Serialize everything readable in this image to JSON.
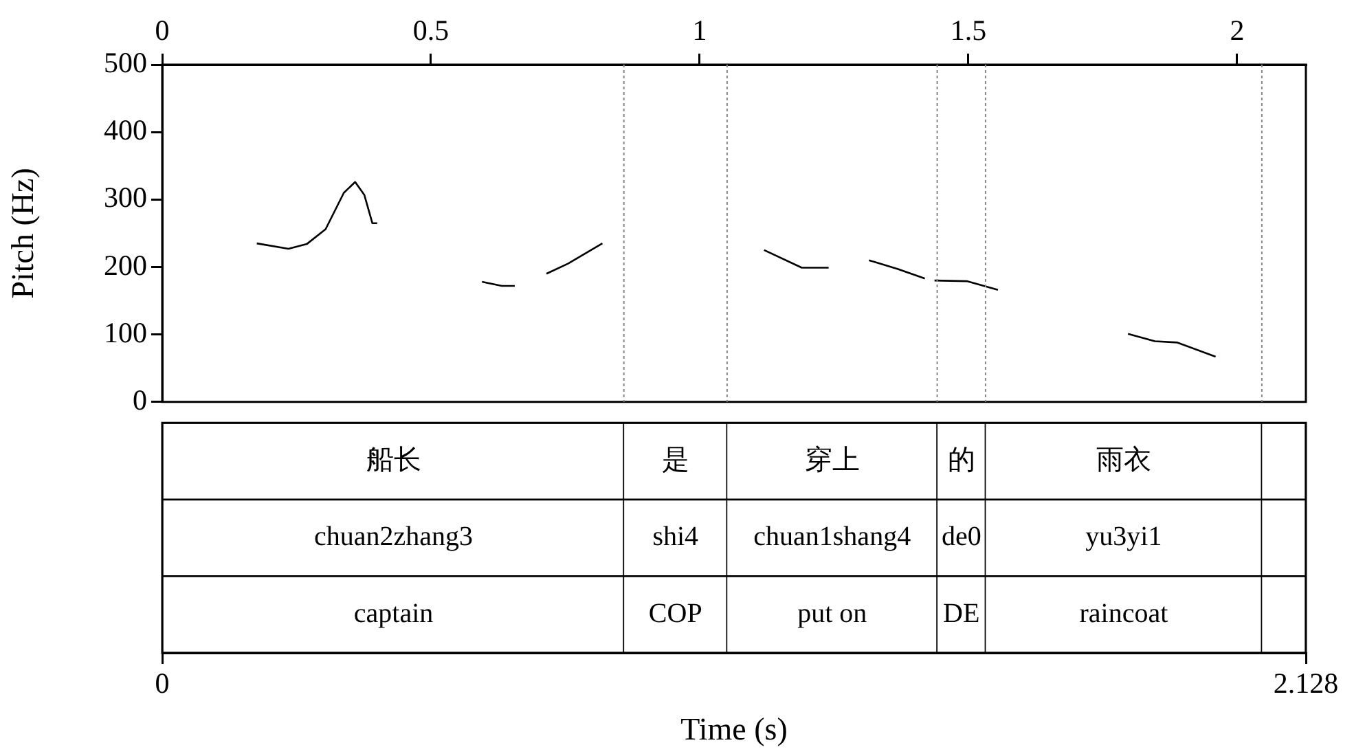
{
  "chart_data": [
    {
      "type": "line",
      "ylabel": "Pitch (Hz)",
      "xlim": [
        0,
        2.128
      ],
      "xticks": [
        0,
        0.5,
        1,
        1.5,
        2
      ],
      "ylim": [
        0,
        500
      ],
      "yticks": [
        0,
        100,
        200,
        300,
        400,
        500
      ],
      "marker": "none",
      "line_style": "solid",
      "legend": false,
      "series": [
        {
          "color": "#000000",
          "x": [
            0.176,
            0.235,
            0.269,
            0.304,
            0.338,
            0.359,
            0.376,
            0.391,
            0.4
          ],
          "values": [
            235,
            227,
            234,
            256,
            310,
            326,
            307,
            265,
            265
          ]
        },
        {
          "color": "#000000",
          "x": [
            0.595,
            0.632,
            0.656
          ],
          "values": [
            178,
            172,
            172
          ]
        },
        {
          "color": "#000000",
          "x": [
            0.715,
            0.755,
            0.819
          ],
          "values": [
            190,
            205,
            235
          ]
        },
        {
          "color": "#000000",
          "x": [
            1.12,
            1.19,
            1.24
          ],
          "values": [
            225,
            199,
            199
          ]
        },
        {
          "color": "#000000",
          "x": [
            1.315,
            1.369,
            1.419
          ],
          "values": [
            210,
            197,
            183
          ]
        },
        {
          "color": "#000000",
          "x": [
            1.437,
            1.497,
            1.555
          ],
          "values": [
            180,
            179,
            166
          ]
        },
        {
          "color": "#000000",
          "x": [
            1.797,
            1.847,
            1.889,
            1.96
          ],
          "values": [
            101,
            90,
            88,
            67
          ]
        }
      ],
      "ref_lines": [
        {
          "axis": "x",
          "value": 0.859,
          "line_style": "dotted",
          "color": "#888888"
        },
        {
          "axis": "x",
          "value": 1.051,
          "line_style": "dotted",
          "color": "#888888"
        },
        {
          "axis": "x",
          "value": 1.442,
          "line_style": "dotted",
          "color": "#888888"
        },
        {
          "axis": "x",
          "value": 1.532,
          "line_style": "dotted",
          "color": "#888888"
        },
        {
          "axis": "x",
          "value": 2.046,
          "line_style": "dotted",
          "color": "#888888"
        }
      ]
    },
    {
      "type": "bar",
      "orientation": "horizontal",
      "stacked": true,
      "xlabel": "Time (s)",
      "xlim": [
        0,
        2.128
      ],
      "xticks": [
        0,
        2.128
      ],
      "categories": [
        null,
        null,
        null
      ],
      "series": [
        {
          "color": "#ffffff",
          "values": [
            0.859,
            0.859,
            0.859
          ],
          "value_labels": [
            "船长",
            "chuan2zhang3",
            "captain"
          ]
        },
        {
          "color": "#ffffff",
          "values": [
            0.192,
            0.192,
            0.192
          ],
          "value_labels": [
            "是",
            "shi4",
            "COP"
          ]
        },
        {
          "color": "#ffffff",
          "values": [
            0.391,
            0.391,
            0.391
          ],
          "value_labels": [
            "穿上",
            "chuan1shang4",
            "put on"
          ]
        },
        {
          "color": "#ffffff",
          "values": [
            0.09,
            0.09,
            0.09
          ],
          "value_labels": [
            "的",
            "de0",
            "DE"
          ]
        },
        {
          "color": "#ffffff",
          "values": [
            0.514,
            0.514,
            0.514
          ],
          "value_labels": [
            "雨衣",
            "yu3yi1",
            "raincoat"
          ]
        },
        {
          "color": "#ffffff",
          "values": [
            0.082,
            0.082,
            0.082
          ],
          "value_labels": [
            null,
            null,
            null
          ]
        }
      ]
    }
  ]
}
